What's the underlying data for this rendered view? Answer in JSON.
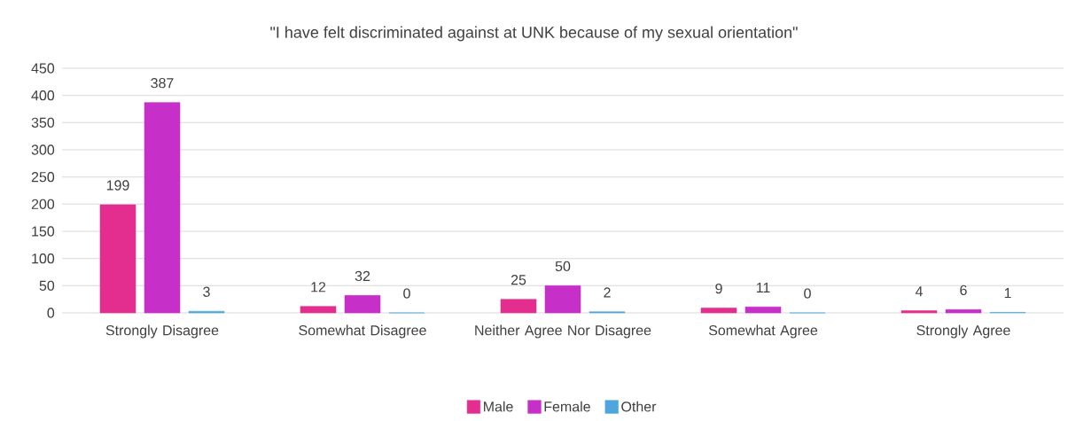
{
  "chart_data": {
    "type": "bar",
    "title": "\"I have felt discriminated against at UNK because of my sexual orientation\"",
    "categories": [
      "Strongly Disagree",
      "Somewhat Disagree",
      "Neither Agree Nor Disagree",
      "Somewhat Agree",
      "Strongly Agree"
    ],
    "series": [
      {
        "name": "Male",
        "color": "#e32d8f",
        "values": [
          199,
          12,
          25,
          9,
          4
        ]
      },
      {
        "name": "Female",
        "color": "#c630c9",
        "values": [
          387,
          32,
          50,
          11,
          6
        ]
      },
      {
        "name": "Other",
        "color": "#4ea6dc",
        "values": [
          3,
          0,
          2,
          0,
          1
        ]
      }
    ],
    "ylim": [
      0,
      450
    ],
    "yticks": [
      0,
      50,
      100,
      150,
      200,
      250,
      300,
      350,
      400,
      450
    ],
    "grid": "y",
    "legend": "bottom",
    "data_labels": true
  }
}
